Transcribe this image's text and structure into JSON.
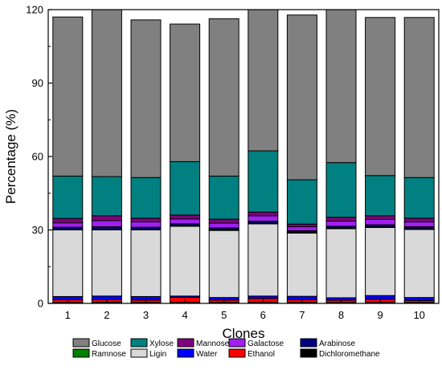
{
  "chart_data": {
    "type": "bar",
    "stacked": true,
    "title": "",
    "xlabel": "Clones",
    "ylabel": "Percentage (%)",
    "ylim": [
      0,
      120
    ],
    "yticks": [
      0,
      30,
      60,
      90,
      120
    ],
    "grid": false,
    "legend_position": "bottom",
    "categories": [
      "1",
      "2",
      "3",
      "4",
      "5",
      "6",
      "7",
      "8",
      "9",
      "10"
    ],
    "series": [
      {
        "name": "Dichloromethane",
        "color": "#000000",
        "values": [
          0.4,
          0.5,
          0.4,
          0.4,
          0.4,
          0.4,
          0.4,
          0.4,
          0.4,
          0.4
        ]
      },
      {
        "name": "Ethanol",
        "color": "#ff0000",
        "values": [
          1.1,
          1.0,
          1.0,
          2.1,
          1.0,
          1.6,
          1.1,
          0.9,
          1.3,
          0.8
        ]
      },
      {
        "name": "Water",
        "color": "#0000ff",
        "values": [
          1.3,
          1.5,
          1.4,
          0.5,
          1.0,
          1.0,
          1.4,
          1.0,
          1.5,
          1.2
        ]
      },
      {
        "name": "Ligin",
        "color": "#d9d9d9",
        "values": [
          27.2,
          27.0,
          27.2,
          28.5,
          27.4,
          29.5,
          25.8,
          28.2,
          27.8,
          27.8
        ]
      },
      {
        "name": "Ramnose",
        "color": "#007f00",
        "values": [
          0.3,
          0.3,
          0.3,
          0.3,
          0.3,
          0.3,
          0.3,
          0.3,
          0.3,
          0.3
        ]
      },
      {
        "name": "Arabinose",
        "color": "#000080",
        "values": [
          0.8,
          1.0,
          0.8,
          0.7,
          0.7,
          0.8,
          0.7,
          0.7,
          0.8,
          0.8
        ]
      },
      {
        "name": "Galactose",
        "color": "#a020f0",
        "values": [
          1.8,
          2.5,
          2.2,
          2.0,
          2.0,
          2.2,
          1.6,
          2.1,
          2.2,
          2.0
        ]
      },
      {
        "name": "Mannose",
        "color": "#800080",
        "values": [
          1.8,
          2.0,
          1.5,
          1.6,
          1.6,
          1.5,
          1.1,
          1.6,
          1.5,
          1.5
        ]
      },
      {
        "name": "Xylose",
        "color": "#008080",
        "values": [
          17.3,
          16.0,
          16.6,
          21.8,
          17.6,
          25.0,
          18.1,
          22.3,
          16.4,
          16.6
        ]
      },
      {
        "name": "Glucose",
        "color": "#808080",
        "values": [
          65.0,
          68.7,
          64.4,
          56.2,
          64.3,
          58.6,
          67.3,
          62.9,
          64.6,
          65.4
        ]
      }
    ],
    "legend_order": [
      "Glucose",
      "Xylose",
      "Mannose",
      "Galactose",
      "Arabinose",
      "Ramnose",
      "Ligin",
      "Water",
      "Ethanol",
      "Dichloromethane"
    ]
  }
}
